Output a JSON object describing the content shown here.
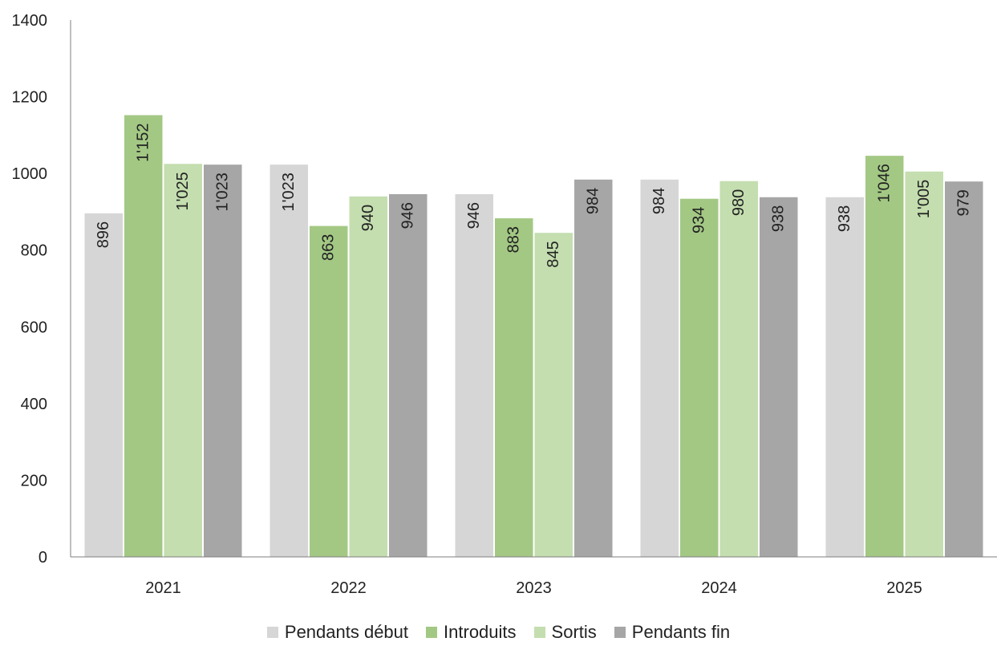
{
  "chart_data": {
    "type": "bar",
    "title": "",
    "xlabel": "",
    "ylabel": "",
    "categories": [
      "2021",
      "2022",
      "2023",
      "2024",
      "2025"
    ],
    "ylim": [
      0,
      1400
    ],
    "yticks": [
      "0",
      "200",
      "400",
      "600",
      "800",
      "1000",
      "1200",
      "1400"
    ],
    "grid": false,
    "legend_position": "bottom",
    "series": [
      {
        "name": "Pendants début",
        "color": "#d6d6d6",
        "values": [
          896,
          1023,
          946,
          984,
          938
        ],
        "labels": [
          "896",
          "1'023",
          "946",
          "984",
          "938"
        ]
      },
      {
        "name": "Introduits",
        "color": "#a3c884",
        "values": [
          1152,
          863,
          883,
          934,
          1046
        ],
        "labels": [
          "1'152",
          "863",
          "883",
          "934",
          "1'046"
        ]
      },
      {
        "name": "Sortis",
        "color": "#c4deaf",
        "values": [
          1025,
          940,
          845,
          980,
          1005
        ],
        "labels": [
          "1'025",
          "940",
          "845",
          "980",
          "1'005"
        ]
      },
      {
        "name": "Pendants fin",
        "color": "#a6a6a6",
        "values": [
          1023,
          946,
          984,
          938,
          979
        ],
        "labels": [
          "1'023",
          "946",
          "984",
          "938",
          "979"
        ]
      }
    ]
  }
}
